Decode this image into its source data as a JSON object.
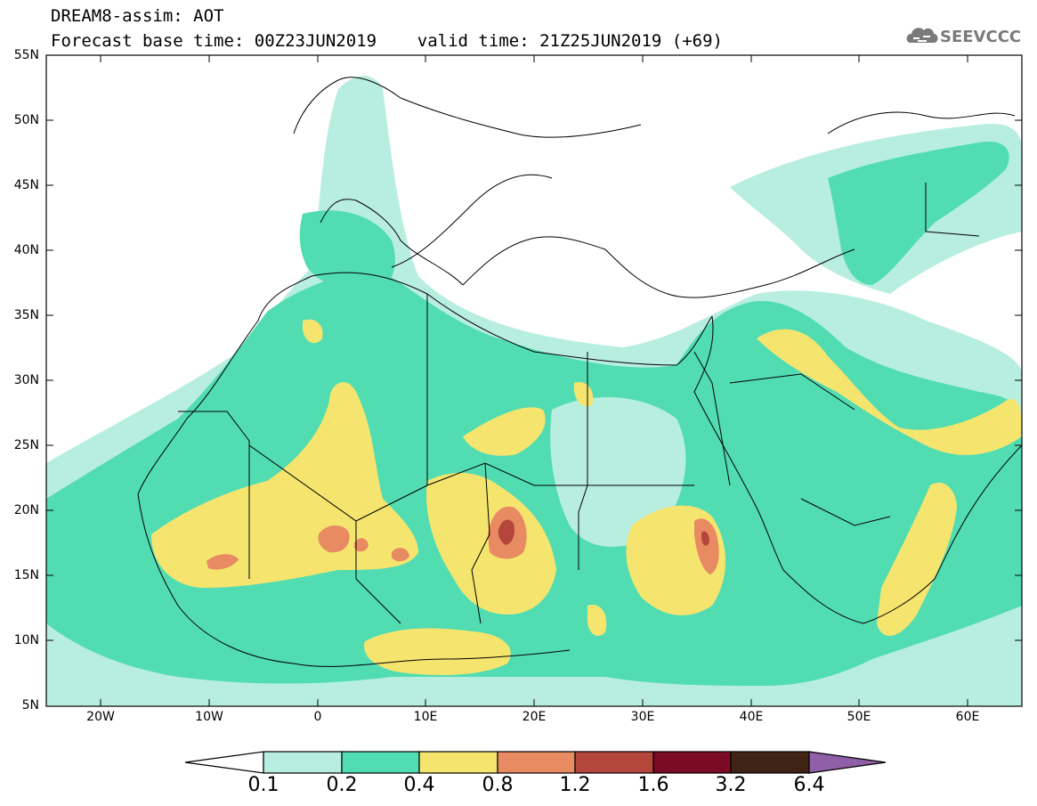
{
  "header": {
    "line1": "DREAM8-assim: AOT",
    "line2": "Forecast base time: 00Z23JUN2019    valid time: 21Z25JUN2019 (+69)"
  },
  "logo": {
    "text": "SEEVCCC",
    "icon": "cloud-logo-icon",
    "color": "#7a7a7a"
  },
  "map": {
    "lat_labels": [
      "55N",
      "50N",
      "45N",
      "40N",
      "35N",
      "30N",
      "25N",
      "20N",
      "15N",
      "10N",
      "5N"
    ],
    "lon_labels": [
      "20W",
      "10W",
      "0",
      "10E",
      "20E",
      "30E",
      "40E",
      "50E",
      "60E"
    ],
    "lat_range": [
      5,
      55
    ],
    "lon_range": [
      -25,
      65
    ],
    "grid": false
  },
  "colorbar": {
    "levels": [
      "0.1",
      "0.2",
      "0.4",
      "0.8",
      "1.2",
      "1.6",
      "3.2",
      "6.4"
    ],
    "colors": [
      "#ffffff",
      "#b8eee0",
      "#52dcb2",
      "#f5e56f",
      "#e88a62",
      "#b5463c",
      "#7b0a24",
      "#3f2416",
      "#8f5fa8"
    ]
  },
  "aot_colors": {
    "very_low": "#b8eee0",
    "low": "#52dcb2",
    "moderate": "#f5e56f",
    "high": "#e88a62",
    "very_high": "#b5463c"
  }
}
